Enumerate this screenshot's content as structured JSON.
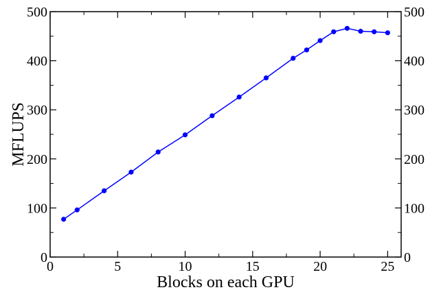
{
  "chart_data": {
    "type": "line",
    "title": "",
    "xlabel": "Blocks on each GPU",
    "ylabel": "MFLUPS",
    "xlim": [
      0,
      26
    ],
    "ylim": [
      0,
      500
    ],
    "x_ticks": [
      0,
      5,
      10,
      15,
      20,
      25
    ],
    "y_ticks": [
      0,
      100,
      200,
      300,
      400,
      500
    ],
    "right_axis_ticks": true,
    "grid": false,
    "color": "#0000ff",
    "series": [
      {
        "x": [
          1,
          2,
          4,
          6,
          8,
          10,
          12,
          14,
          16,
          18,
          19,
          20,
          21,
          22,
          23,
          24,
          25
        ],
        "values": [
          77,
          96,
          135,
          173,
          214,
          249,
          288,
          326,
          365,
          405,
          422,
          441,
          459,
          466,
          460,
          459,
          457
        ]
      }
    ]
  }
}
